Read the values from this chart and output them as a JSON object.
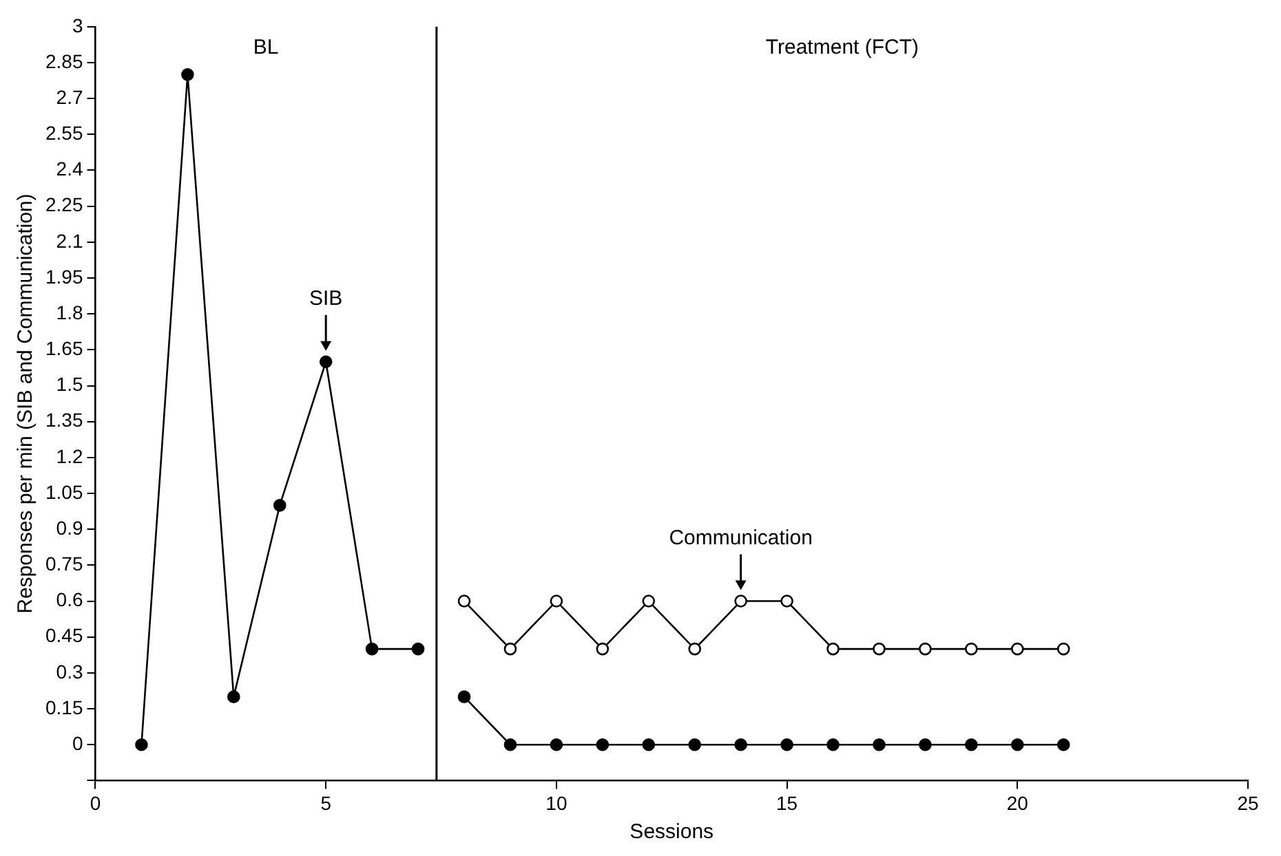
{
  "chart_data": {
    "type": "line",
    "xlabel": "Sessions",
    "ylabel": "Responses per min (SIB and Communication)",
    "annotations": [
      "BL",
      "Treatment (FCT)"
    ],
    "series": [
      {
        "name": "SIB",
        "color": "#000000",
        "x": [
          1,
          2,
          3,
          4,
          5,
          6,
          7
        ],
        "values": [
          0,
          2.8,
          0.2,
          1.0,
          1.6,
          0.4,
          0.4
        ]
      },
      {
        "color": "#000000",
        "x": [
          8,
          9,
          10,
          11,
          12,
          13,
          14,
          15,
          16,
          17,
          18,
          19,
          20,
          21
        ],
        "values": [
          0.2,
          0,
          0,
          0,
          0,
          0,
          0,
          0,
          0,
          0,
          0,
          0,
          0,
          0
        ]
      },
      {
        "name": "Communication",
        "color": "#000000",
        "x": [
          8,
          9,
          10,
          11,
          12,
          13,
          14,
          15,
          16,
          17,
          18,
          19,
          20,
          21
        ],
        "values": [
          0.6,
          0.4,
          0.6,
          0.4,
          0.6,
          0.4,
          0.6,
          0.6,
          0.4,
          0.4,
          0.4,
          0.4,
          0.4,
          0.4
        ]
      }
    ],
    "xlim": [
      0,
      25
    ],
    "xticks": [
      0,
      5,
      10,
      15,
      20,
      25
    ],
    "ylim": [
      -0.15,
      3
    ],
    "yticks": [
      {
        "value": -0.15,
        "label": null
      },
      0,
      0.15,
      0.3,
      0.45,
      0.6,
      0.75,
      0.9,
      1.05,
      1.2,
      1.35,
      1.5,
      1.65,
      1.8,
      1.95,
      2.1,
      2.25,
      2.4,
      2.55,
      2.7,
      2.85,
      3
    ],
    "ref_lines": [
      {
        "axis": "x",
        "value": 7.4,
        "color": "#000000"
      }
    ],
    "grid": false,
    "legend": false,
    "marker": "circle",
    "line_style": "solid"
  }
}
